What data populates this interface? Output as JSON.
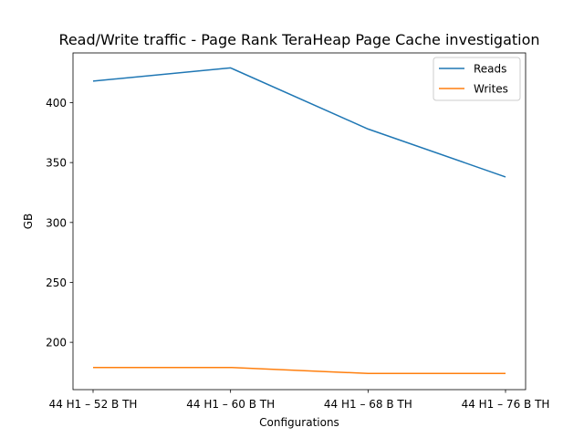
{
  "chart_data": {
    "type": "line",
    "title": "Read/Write traffic - Page Rank TeraHeap Page Cache investigation",
    "xlabel": "Configurations",
    "ylabel": "GB",
    "categories": [
      "44 H1 – 52 B TH",
      "44 H1 – 60 B TH",
      "44 H1 – 68 B TH",
      "44 H1 – 76 B TH"
    ],
    "series": [
      {
        "name": "Reads",
        "values": [
          418,
          429,
          378,
          338
        ],
        "color": "#1f77b4"
      },
      {
        "name": "Writes",
        "values": [
          179,
          179,
          174,
          174
        ],
        "color": "#ff7f0e"
      }
    ],
    "ylim": [
      160.5,
      441.5
    ],
    "yticks": [
      200,
      250,
      300,
      350,
      400
    ],
    "grid": false,
    "legend_position": "top-right"
  }
}
